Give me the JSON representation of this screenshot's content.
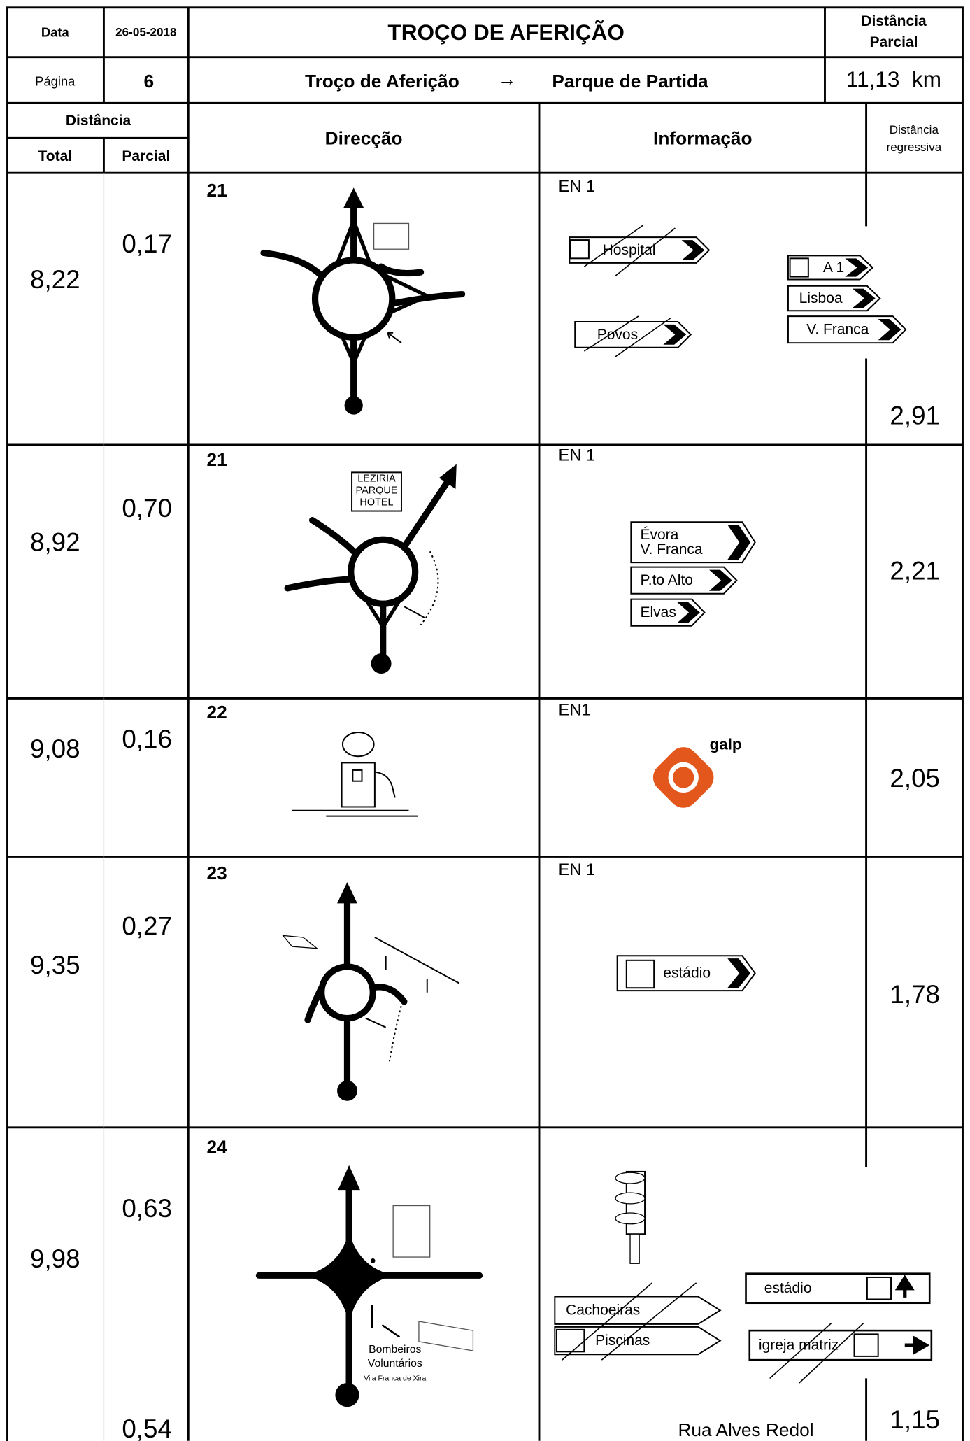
{
  "header": {
    "date_label": "Data",
    "date": "26-05-2018",
    "title": "TROÇO DE AFERIÇÃO",
    "partial_label": [
      "Distância",
      "Parcial"
    ],
    "page_label": "Página",
    "page": "6",
    "route_from": "Troço de Aferição",
    "route_arrow": "→",
    "route_to": "Parque de Partida",
    "partial_distance": "11,13  km"
  },
  "columns": {
    "distance": "Distância",
    "total": "Total",
    "partial": "Parcial",
    "direction": "Direcção",
    "information": "Informação",
    "regressive": [
      "Distância",
      "regressiva"
    ]
  },
  "rows": [
    {
      "total": "8,22",
      "partial": "0,17",
      "number": "21",
      "road": "EN 1",
      "regressive": "2,91",
      "signs": [
        "Hospital",
        "Povos",
        "A 1",
        "Lisboa",
        "V. Franca"
      ]
    },
    {
      "total": "8,92",
      "partial": "0,70",
      "number": "21",
      "road": "EN 1",
      "regressive": "2,21",
      "landmark": [
        "LEZIRIA",
        "PARQUE",
        "HOTEL"
      ],
      "signs": [
        "Évora",
        "V. Franca",
        "P.to Alto",
        "Elvas"
      ]
    },
    {
      "total": "9,08",
      "partial": "0,16",
      "number": "22",
      "road": "EN1",
      "regressive": "2,05",
      "brand": "galp"
    },
    {
      "total": "9,35",
      "partial": "0,27",
      "number": "23",
      "road": "EN 1",
      "regressive": "1,78",
      "signs": [
        "estádio"
      ]
    },
    {
      "total": "9,98",
      "partial": "0,63",
      "partial_end": "0,54",
      "number": "24",
      "regressive": "1,15",
      "signs": [
        "Cachoeiras",
        "Piscinas",
        "estádio",
        "igreja matriz"
      ],
      "landmark": [
        "Bombeiros",
        "Voluntários",
        "Vila Franca de Xira"
      ],
      "street": "Rua Alves Redol"
    }
  ]
}
